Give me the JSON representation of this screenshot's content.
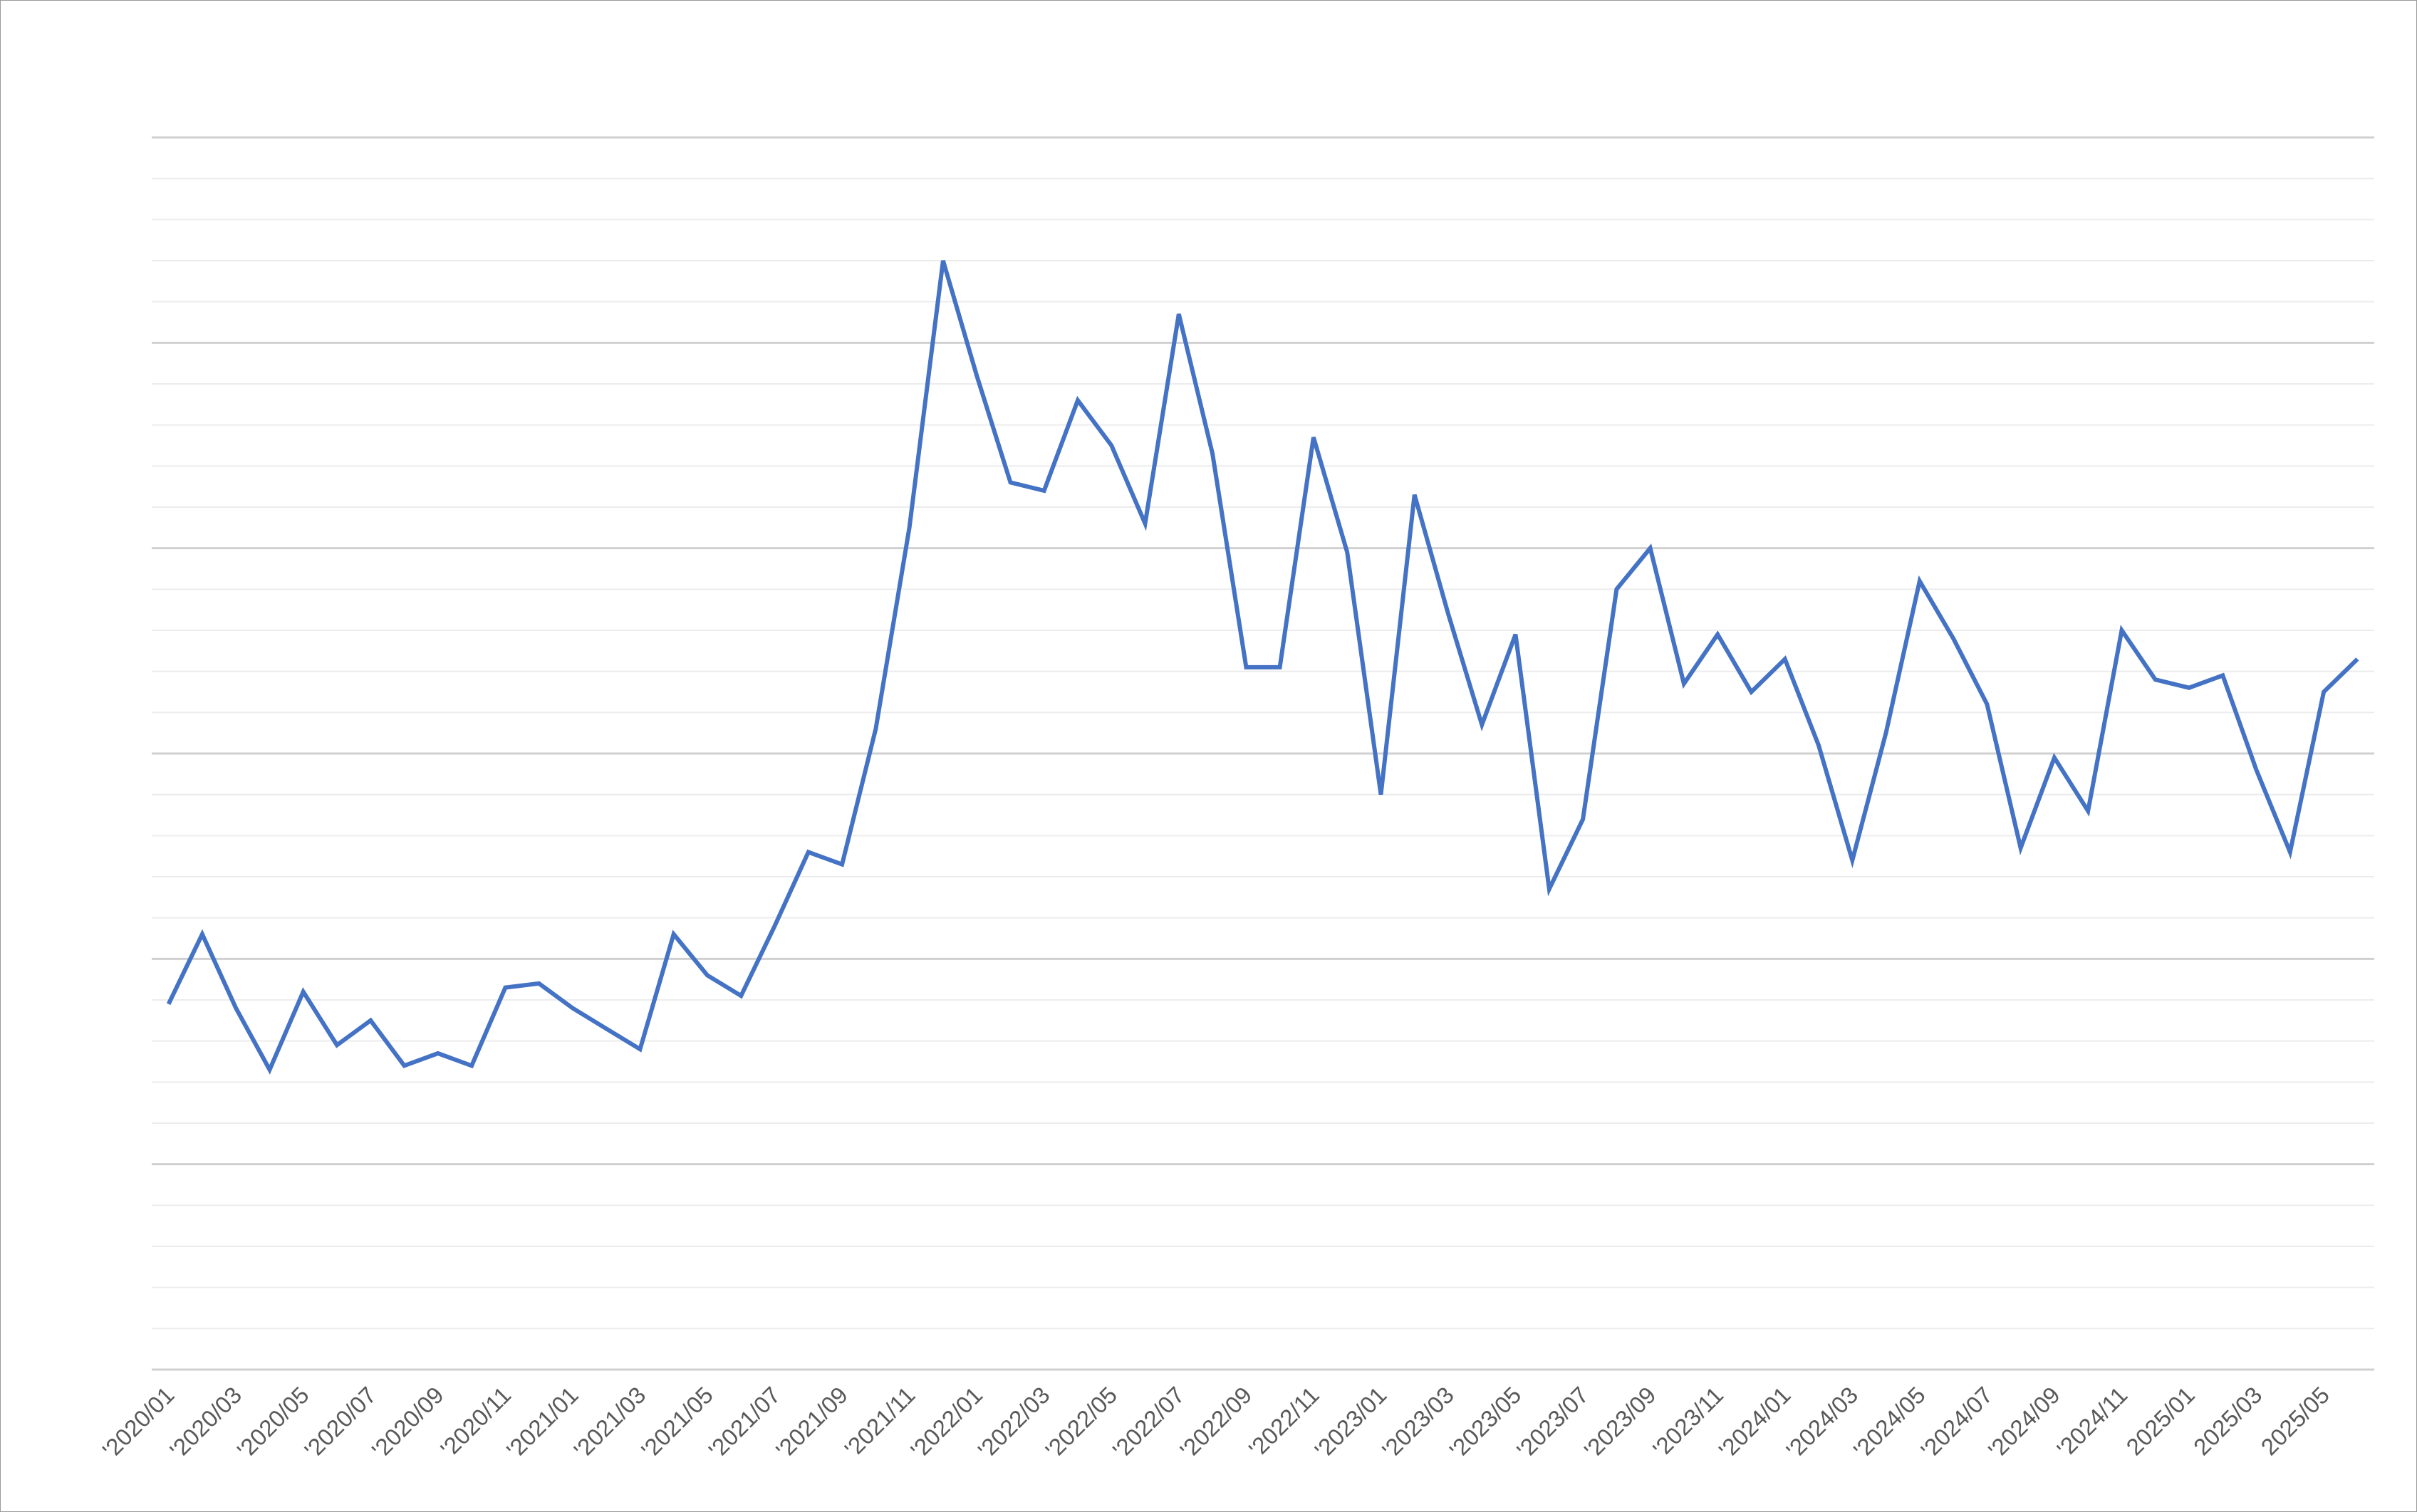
{
  "chart_data": {
    "type": "line",
    "title": "",
    "xlabel": "",
    "ylabel": "",
    "ylim": [
      0,
      30
    ],
    "grid": true,
    "grid_minor": true,
    "legend": "none",
    "line_color": "#4472C4",
    "x": [
      "2020-01",
      "2020-02",
      "2020-03",
      "2020-04",
      "2020-05",
      "2020-06",
      "2020-07",
      "2020-08",
      "2020-09",
      "2020-10",
      "2020-11",
      "2020-12",
      "2021-01",
      "2021-02",
      "2021-03",
      "2021-04",
      "2021-05",
      "2021-06",
      "2021-07",
      "2021-08",
      "2021-09",
      "2021-10",
      "2021-11",
      "2021-12",
      "2022-01",
      "2022-02",
      "2022-03",
      "2022-04",
      "2022-05",
      "2022-06",
      "2022-07",
      "2022-08",
      "2022-09",
      "2022-10",
      "2022-11",
      "2022-12",
      "2023-01",
      "2023-02",
      "2023-03",
      "2023-04",
      "2023-05",
      "2023-06",
      "2023-07",
      "2023-08",
      "2023-09",
      "2023-10",
      "2023-11",
      "2023-12",
      "2024-01",
      "2024-02",
      "2024-03",
      "2024-04",
      "2024-05",
      "2024-06",
      "2024-07",
      "2024-08",
      "2024-09",
      "2024-10",
      "2024-11",
      "2024-12",
      "2025-01",
      "2025-02",
      "2025-03",
      "2025-04",
      "2025-05",
      "2025-06"
    ],
    "tick_labels": [
      "'2020/01",
      "'2020/03",
      "'2020/05",
      "'2020/07",
      "'2020/09",
      "'2020/11",
      "'2021/01",
      "'2021/03",
      "'2021/05",
      "'2021/07",
      "'2021/09",
      "'2021/11",
      "'2022/01",
      "'2022/03",
      "'2022/05",
      "'2022/07",
      "'2022/09",
      "'2022/11",
      "'2023/01",
      "'2023/03",
      "'2023/05",
      "'2023/07",
      "'2023/09",
      "'2023/11",
      "'2024/01",
      "'2024/03",
      "'2024/05",
      "'2024/07",
      "'2024/09",
      "'2024/11",
      "2025/01",
      "2025/03",
      "2025/05"
    ],
    "series": [
      {
        "values": [
          8.9,
          10.6,
          8.8,
          7.3,
          9.2,
          7.9,
          8.5,
          7.4,
          7.7,
          7.4,
          9.3,
          9.4,
          8.8,
          8.3,
          7.8,
          10.6,
          9.6,
          9.1,
          10.8,
          12.6,
          12.3,
          15.6,
          20.5,
          27.0,
          24.2,
          21.6,
          21.4,
          23.6,
          22.5,
          20.6,
          25.7,
          22.3,
          17.1,
          17.1,
          22.7,
          19.9,
          14.0,
          21.3,
          18.4,
          15.7,
          17.9,
          11.7,
          13.4,
          19.0,
          20.0,
          16.7,
          17.9,
          16.5,
          17.3,
          15.2,
          12.4,
          15.5,
          19.2,
          17.8,
          16.2,
          12.7,
          14.9,
          13.6,
          18.0,
          16.8,
          16.6,
          16.9,
          14.6,
          12.6,
          16.5,
          17.3
        ]
      }
    ]
  }
}
